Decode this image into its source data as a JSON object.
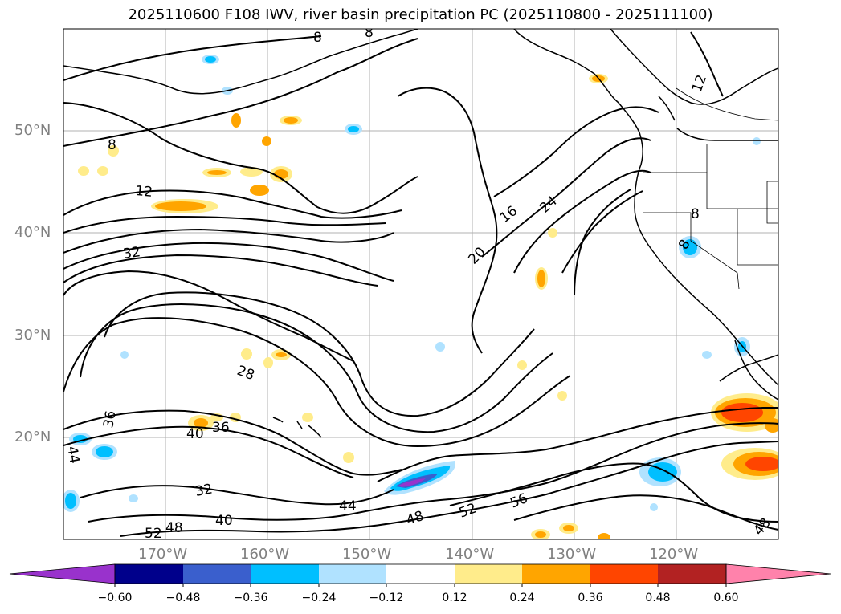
{
  "title": "2025110600 F108 IWV, river basin precipitation PC (2025110800 - 2025111100)",
  "map": {
    "lat_labels": [
      "50°N",
      "40°N",
      "30°N",
      "20°N"
    ],
    "lon_labels": [
      "170°W",
      "160°W",
      "150°W",
      "140°W",
      "130°W",
      "120°W"
    ],
    "extent": {
      "lon_min": -180,
      "lon_max": -110,
      "lat_min": 10,
      "lat_max": 60
    },
    "grid": true,
    "contour_labels": [
      "8",
      "12",
      "32",
      "16",
      "24",
      "20",
      "28",
      "36",
      "40",
      "36",
      "44",
      "32",
      "40",
      "52",
      "48",
      "44",
      "48",
      "52",
      "56",
      "48",
      "12",
      "8",
      "8",
      "8",
      "8"
    ]
  },
  "colorbar": {
    "ticks": [
      "−0.60",
      "−0.48",
      "−0.36",
      "−0.24",
      "−0.12",
      "0.12",
      "0.24",
      "0.36",
      "0.48",
      "0.60"
    ],
    "colors": [
      "#9932CC",
      "#00008B",
      "#3A5FCD",
      "#00BFFF",
      "#B0E2FF",
      "#FFFFFF",
      "#FFEC8B",
      "#FFA500",
      "#FF4500",
      "#B22222",
      "#FF82AB"
    ]
  }
}
